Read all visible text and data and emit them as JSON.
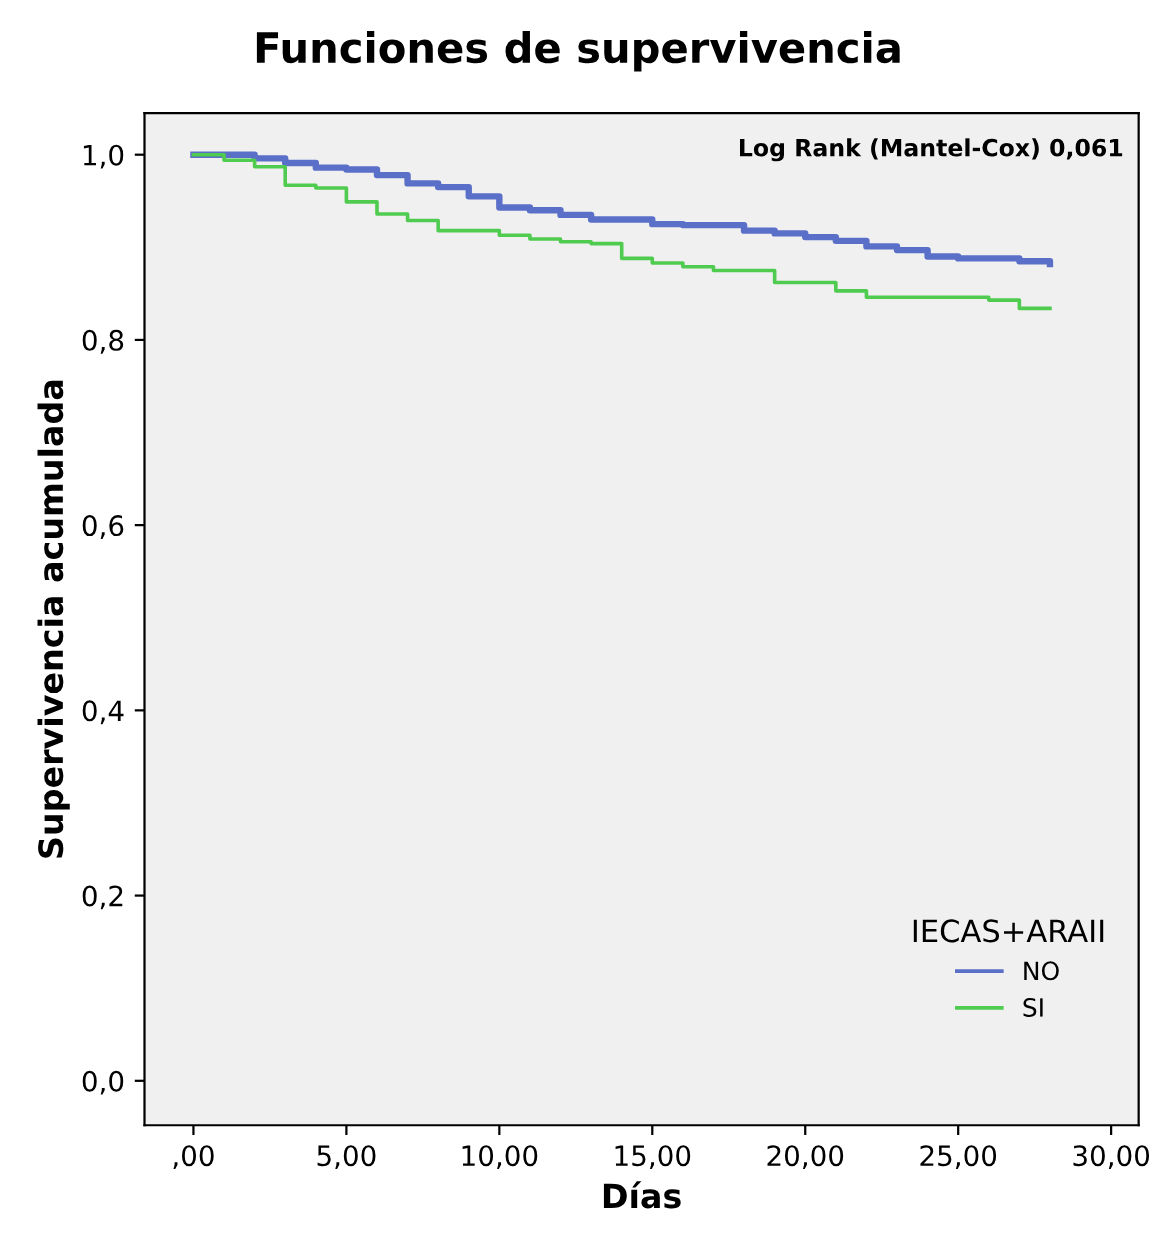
{
  "chart_data": {
    "type": "step",
    "title": "Funciones de supervivencia",
    "xlabel": "Días",
    "ylabel": "Supervivencia acumulada",
    "legend_title": "IECAS+ARAII",
    "legend": "bottom right",
    "grid": false,
    "marker": "none",
    "line_style": "solid",
    "annotations": [
      "Log Rank (Mantel-Cox) 0,061"
    ],
    "xlim": [
      -1.6,
      30.9
    ],
    "ylim": [
      -0.048,
      1.045
    ],
    "xticks": [
      {
        "value": 0,
        "label": ",00"
      },
      {
        "value": 5,
        "label": "5,00"
      },
      {
        "value": 10,
        "label": "10,00"
      },
      {
        "value": 15,
        "label": "15,00"
      },
      {
        "value": 20,
        "label": "20,00"
      },
      {
        "value": 25,
        "label": "25,00"
      },
      {
        "value": 30,
        "label": "30,00"
      }
    ],
    "yticks": [
      {
        "value": 0,
        "label": "0,0"
      },
      {
        "value": 0.2,
        "label": "0,2"
      },
      {
        "value": 0.4,
        "label": "0,4"
      },
      {
        "value": 0.6,
        "label": "0,6"
      },
      {
        "value": 0.8,
        "label": "0,8"
      },
      {
        "value": 1.0,
        "label": "1,0"
      }
    ],
    "series": [
      {
        "name": "NO",
        "color": "#5a6fc8",
        "x": [
          0,
          2,
          3,
          4,
          5,
          6,
          7,
          8,
          9,
          10,
          11,
          12,
          13,
          15,
          16,
          18,
          19,
          20,
          21,
          22,
          23,
          24,
          25,
          27,
          28
        ],
        "values": [
          1.0,
          0.996,
          0.991,
          0.986,
          0.984,
          0.978,
          0.969,
          0.965,
          0.955,
          0.943,
          0.94,
          0.935,
          0.93,
          0.925,
          0.924,
          0.918,
          0.915,
          0.911,
          0.907,
          0.901,
          0.897,
          0.89,
          0.888,
          0.885,
          0.882
        ]
      },
      {
        "name": "SI",
        "color": "#4fcb4f",
        "x": [
          0,
          1,
          2,
          3,
          4,
          5,
          6,
          7,
          8,
          10,
          11,
          12,
          13,
          14,
          15,
          16,
          17,
          19,
          21,
          22,
          26,
          27,
          28
        ],
        "values": [
          1.0,
          0.994,
          0.987,
          0.967,
          0.964,
          0.949,
          0.936,
          0.929,
          0.918,
          0.913,
          0.909,
          0.906,
          0.904,
          0.888,
          0.883,
          0.879,
          0.875,
          0.862,
          0.853,
          0.846,
          0.843,
          0.834,
          0.834
        ]
      }
    ]
  }
}
